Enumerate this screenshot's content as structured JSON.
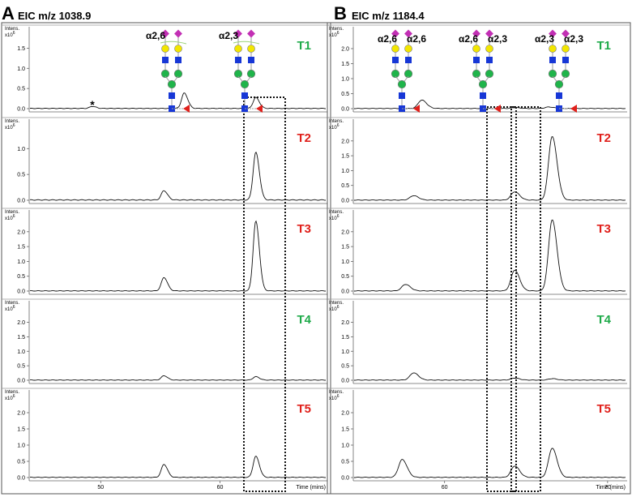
{
  "panels": [
    {
      "letter": "A",
      "title": "EIC m/z 1038.9",
      "time_label": "Time (mins)",
      "x_ticks": [
        50,
        60
      ],
      "traces": [
        {
          "label": "T1",
          "label_color": "#1faa4a",
          "y_ticks": [
            "0.0",
            "0.5",
            "1.0",
            "1.5"
          ],
          "y_max": 1.75
        },
        {
          "label": "T2",
          "label_color": "#e0201b",
          "y_ticks": [
            "0.0",
            "0.5",
            "1.0"
          ],
          "y_max": 1.35
        },
        {
          "label": "T3",
          "label_color": "#e0201b",
          "y_ticks": [
            "0.0",
            "0.5",
            "1.0",
            "1.5",
            "2.0"
          ],
          "y_max": 2.35
        },
        {
          "label": "T4",
          "label_color": "#1faa4a",
          "y_ticks": [
            "0.0",
            "0.5",
            "1.0",
            "1.5",
            "2.0"
          ],
          "y_max": 2.35
        },
        {
          "label": "T5",
          "label_color": "#e0201b",
          "y_ticks": [
            "0.0",
            "0.5",
            "1.0",
            "1.5",
            "2.0"
          ],
          "y_max": 2.35
        }
      ],
      "glycans": [
        {
          "linkage": "α2,6"
        },
        {
          "linkage": "α2,3"
        }
      ],
      "asterisk": "*"
    },
    {
      "letter": "B",
      "title": "EIC m/z 1184.4",
      "time_label": "Time (mins)",
      "x_ticks": [
        60,
        70
      ],
      "traces": [
        {
          "label": "T1",
          "label_color": "#1faa4a",
          "y_ticks": [
            "0.0",
            "0.5",
            "1.0",
            "1.5",
            "2.0"
          ],
          "y_max": 2.35
        },
        {
          "label": "T2",
          "label_color": "#e0201b",
          "y_ticks": [
            "0.0",
            "0.5",
            "1.0",
            "1.5",
            "2.0"
          ],
          "y_max": 2.35
        },
        {
          "label": "T3",
          "label_color": "#e0201b",
          "y_ticks": [
            "0.0",
            "0.5",
            "1.0",
            "1.5",
            "2.0"
          ],
          "y_max": 2.35
        },
        {
          "label": "T4",
          "label_color": "#1faa4a",
          "y_ticks": [
            "0.0",
            "0.5",
            "1.0",
            "1.5",
            "2.0"
          ],
          "y_max": 2.35
        },
        {
          "label": "T5",
          "label_color": "#e0201b",
          "y_ticks": [
            "0.0",
            "0.5",
            "1.0",
            "1.5",
            "2.0"
          ],
          "y_max": 2.35
        }
      ],
      "glycans": [
        {
          "linkage": "α2,6",
          "linkage2": "α2,6"
        },
        {
          "linkage": "α2,6",
          "linkage2": "α2,3"
        },
        {
          "linkage": "α2,3",
          "linkage2": "α2,3"
        }
      ]
    }
  ],
  "axis_labels": {
    "intens": "Intens.",
    "scale": "x10",
    "scale_exp": "6"
  },
  "chart_data": [
    {
      "type": "line",
      "title": "EIC m/z 1038.9",
      "xlabel": "Time (mins)",
      "ylabel": "Intens. x10^6",
      "xlim": [
        44,
        69
      ],
      "series": [
        {
          "name": "T1",
          "peaks": [
            {
              "x": 49.3,
              "y": 0.05
            },
            {
              "x": 57.0,
              "y": 0.38
            },
            {
              "x": 63.0,
              "y": 0.27
            }
          ]
        },
        {
          "name": "T2",
          "peaks": [
            {
              "x": 55.3,
              "y": 0.18
            },
            {
              "x": 63.0,
              "y": 0.92
            }
          ]
        },
        {
          "name": "T3",
          "peaks": [
            {
              "x": 55.3,
              "y": 0.45
            },
            {
              "x": 63.0,
              "y": 2.35
            }
          ]
        },
        {
          "name": "T4",
          "peaks": [
            {
              "x": 55.3,
              "y": 0.15
            },
            {
              "x": 63.0,
              "y": 0.12
            }
          ]
        },
        {
          "name": "T5",
          "peaks": [
            {
              "x": 55.3,
              "y": 0.4
            },
            {
              "x": 63.0,
              "y": 0.65
            }
          ]
        }
      ]
    },
    {
      "type": "line",
      "title": "EIC m/z 1184.4",
      "xlabel": "Time (mins)",
      "ylabel": "Intens. x10^6",
      "xlim": [
        54.4,
        71.2
      ],
      "series": [
        {
          "name": "T1",
          "peaks": [
            {
              "x": 58.6,
              "y": 0.28
            },
            {
              "x": 64.3,
              "y": 0.03
            },
            {
              "x": 66.4,
              "y": 0.05
            }
          ]
        },
        {
          "name": "T2",
          "peaks": [
            {
              "x": 58.1,
              "y": 0.15
            },
            {
              "x": 64.3,
              "y": 0.28
            },
            {
              "x": 66.6,
              "y": 2.15
            }
          ]
        },
        {
          "name": "T3",
          "peaks": [
            {
              "x": 57.6,
              "y": 0.22
            },
            {
              "x": 64.3,
              "y": 0.7
            },
            {
              "x": 66.6,
              "y": 2.4
            }
          ]
        },
        {
          "name": "T4",
          "peaks": [
            {
              "x": 58.1,
              "y": 0.25
            },
            {
              "x": 64.3,
              "y": 0.07
            },
            {
              "x": 66.6,
              "y": 0.05
            }
          ]
        },
        {
          "name": "T5",
          "peaks": [
            {
              "x": 57.4,
              "y": 0.55
            },
            {
              "x": 64.3,
              "y": 0.35
            },
            {
              "x": 66.6,
              "y": 0.9
            }
          ]
        }
      ]
    }
  ]
}
